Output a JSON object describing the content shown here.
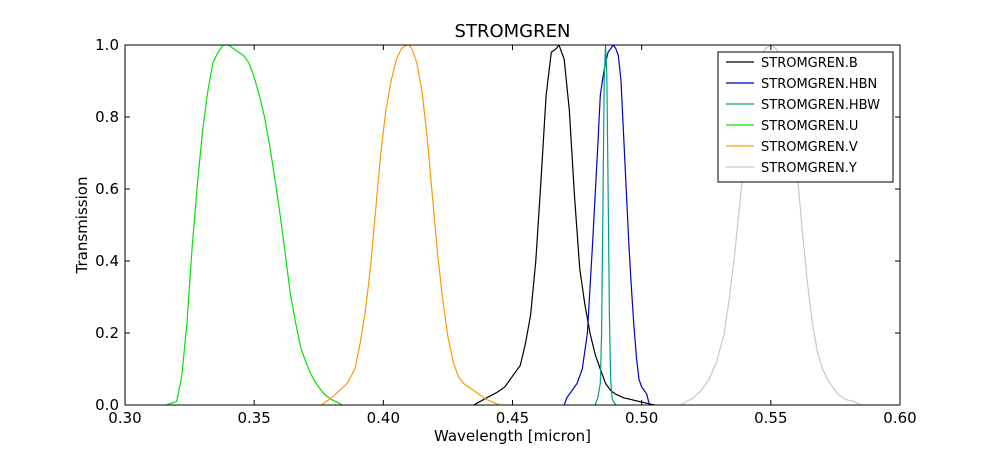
{
  "chart_data": {
    "type": "line",
    "title": "STROMGREN",
    "xlabel": "Wavelength [micron]",
    "ylabel": "Transmission",
    "xlim": [
      0.3,
      0.6
    ],
    "ylim": [
      0.0,
      1.0
    ],
    "xticks": [
      "0.30",
      "0.35",
      "0.40",
      "0.45",
      "0.50",
      "0.55",
      "0.60"
    ],
    "yticks": [
      "0.0",
      "0.2",
      "0.4",
      "0.6",
      "0.8",
      "1.0"
    ],
    "grid": false,
    "legend_position": "top-right",
    "series": [
      {
        "name": "STROMGREN.B",
        "color": "#000000",
        "x": [
          0.435,
          0.44,
          0.444,
          0.447,
          0.45,
          0.453,
          0.455,
          0.457,
          0.459,
          0.461,
          0.463,
          0.465,
          0.467,
          0.468,
          0.47,
          0.472,
          0.474,
          0.476,
          0.478,
          0.48,
          0.482,
          0.484,
          0.486,
          0.488,
          0.49,
          0.493,
          0.496,
          0.5,
          0.505
        ],
        "y": [
          0.0,
          0.02,
          0.035,
          0.05,
          0.08,
          0.11,
          0.17,
          0.25,
          0.4,
          0.62,
          0.86,
          0.98,
          0.99,
          1.0,
          0.96,
          0.82,
          0.58,
          0.38,
          0.28,
          0.2,
          0.14,
          0.1,
          0.06,
          0.04,
          0.03,
          0.02,
          0.015,
          0.008,
          0.0
        ]
      },
      {
        "name": "STROMGREN.HBN",
        "color": "#0000cc",
        "x": [
          0.47,
          0.471,
          0.473,
          0.475,
          0.477,
          0.479,
          0.481,
          0.483,
          0.484,
          0.485,
          0.486,
          0.487,
          0.488,
          0.489,
          0.49,
          0.491,
          0.492,
          0.493,
          0.494,
          0.495,
          0.496,
          0.497,
          0.498,
          0.499,
          0.5,
          0.501,
          0.502,
          0.503
        ],
        "y": [
          0.0,
          0.02,
          0.04,
          0.06,
          0.1,
          0.2,
          0.45,
          0.72,
          0.86,
          0.91,
          0.95,
          0.98,
          0.99,
          1.0,
          0.99,
          0.97,
          0.9,
          0.75,
          0.6,
          0.45,
          0.33,
          0.22,
          0.13,
          0.07,
          0.05,
          0.04,
          0.03,
          0.0
        ]
      },
      {
        "name": "STROMGREN.HBW",
        "color": "#00a087",
        "x": [
          0.482,
          0.483,
          0.484,
          0.4845,
          0.485,
          0.4855,
          0.486,
          0.4865,
          0.487,
          0.4875,
          0.488,
          0.4885,
          0.489,
          0.49
        ],
        "y": [
          0.0,
          0.02,
          0.06,
          0.2,
          0.55,
          0.9,
          1.0,
          0.92,
          0.6,
          0.25,
          0.07,
          0.02,
          0.01,
          0.0
        ]
      },
      {
        "name": "STROMGREN.U",
        "color": "#00e600",
        "x": [
          0.316,
          0.32,
          0.322,
          0.324,
          0.326,
          0.328,
          0.33,
          0.332,
          0.334,
          0.336,
          0.338,
          0.34,
          0.342,
          0.344,
          0.346,
          0.348,
          0.35,
          0.352,
          0.354,
          0.356,
          0.358,
          0.36,
          0.362,
          0.364,
          0.366,
          0.368,
          0.37,
          0.372,
          0.374,
          0.376,
          0.378,
          0.38,
          0.382,
          0.384
        ],
        "y": [
          0.0,
          0.01,
          0.08,
          0.23,
          0.44,
          0.61,
          0.76,
          0.87,
          0.95,
          0.98,
          1.0,
          1.0,
          0.99,
          0.98,
          0.97,
          0.95,
          0.91,
          0.86,
          0.8,
          0.72,
          0.63,
          0.53,
          0.42,
          0.31,
          0.23,
          0.16,
          0.12,
          0.085,
          0.06,
          0.04,
          0.025,
          0.015,
          0.008,
          0.0
        ]
      },
      {
        "name": "STROMGREN.V",
        "color": "#ff9900",
        "x": [
          0.376,
          0.38,
          0.383,
          0.386,
          0.389,
          0.391,
          0.393,
          0.395,
          0.397,
          0.399,
          0.401,
          0.403,
          0.405,
          0.407,
          0.409,
          0.41,
          0.411,
          0.413,
          0.415,
          0.417,
          0.419,
          0.421,
          0.423,
          0.425,
          0.427,
          0.429,
          0.431,
          0.433,
          0.436,
          0.44,
          0.445
        ],
        "y": [
          0.0,
          0.02,
          0.04,
          0.06,
          0.1,
          0.17,
          0.26,
          0.38,
          0.54,
          0.7,
          0.82,
          0.9,
          0.96,
          0.99,
          1.0,
          1.0,
          0.99,
          0.95,
          0.87,
          0.74,
          0.58,
          0.42,
          0.29,
          0.19,
          0.12,
          0.08,
          0.06,
          0.05,
          0.035,
          0.015,
          0.0
        ]
      },
      {
        "name": "STROMGREN.Y",
        "color": "#c8c8c8",
        "x": [
          0.515,
          0.52,
          0.523,
          0.526,
          0.529,
          0.532,
          0.534,
          0.536,
          0.538,
          0.54,
          0.542,
          0.544,
          0.546,
          0.548,
          0.55,
          0.552,
          0.554,
          0.556,
          0.558,
          0.56,
          0.562,
          0.564,
          0.566,
          0.568,
          0.57,
          0.572,
          0.574,
          0.576,
          0.579,
          0.582,
          0.585
        ],
        "y": [
          0.0,
          0.02,
          0.04,
          0.07,
          0.12,
          0.2,
          0.3,
          0.42,
          0.56,
          0.7,
          0.83,
          0.92,
          0.97,
          0.99,
          1.0,
          0.99,
          0.96,
          0.9,
          0.8,
          0.66,
          0.5,
          0.35,
          0.23,
          0.15,
          0.1,
          0.07,
          0.05,
          0.03,
          0.015,
          0.01,
          0.0
        ]
      }
    ]
  }
}
